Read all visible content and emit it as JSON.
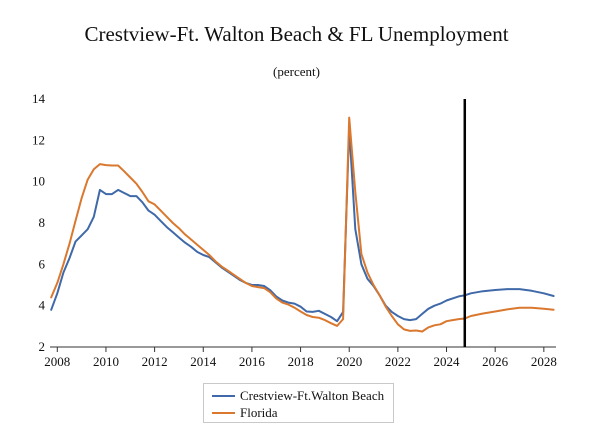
{
  "chart_data": {
    "type": "line",
    "title": "Crestview-Ft. Walton Beach & FL Unemployment",
    "subtitle": "(percent)",
    "xlabel": "",
    "ylabel": "",
    "xlim": [
      2007.7,
      2028.5
    ],
    "ylim": [
      2,
      14
    ],
    "x_ticks": [
      2008,
      2010,
      2012,
      2014,
      2016,
      2018,
      2020,
      2022,
      2024,
      2026,
      2028
    ],
    "x_tick_labels": [
      "2008",
      "2010",
      "2012",
      "2014",
      "2016",
      "2018",
      "2020",
      "2022",
      "2024",
      "2026",
      "2028"
    ],
    "y_ticks": [
      2,
      4,
      6,
      8,
      10,
      12,
      14
    ],
    "y_tick_labels": [
      "2",
      "4",
      "6",
      "8",
      "10",
      "12",
      "14"
    ],
    "grid": false,
    "legend_position": "bottom-center",
    "annotations": [
      {
        "type": "vertical-line",
        "x": 2024.75,
        "color": "#000000",
        "meaning": "forecast start"
      }
    ],
    "series": [
      {
        "name": "Crestview-Ft.Walton Beach",
        "color": "#3f69a8",
        "points": [
          [
            2007.75,
            3.8
          ],
          [
            2008.0,
            4.6
          ],
          [
            2008.25,
            5.6
          ],
          [
            2008.5,
            6.3
          ],
          [
            2008.75,
            7.1
          ],
          [
            2009.0,
            7.4
          ],
          [
            2009.25,
            7.7
          ],
          [
            2009.5,
            8.3
          ],
          [
            2009.75,
            9.6
          ],
          [
            2010.0,
            9.4
          ],
          [
            2010.25,
            9.4
          ],
          [
            2010.5,
            9.6
          ],
          [
            2010.75,
            9.45
          ],
          [
            2011.0,
            9.3
          ],
          [
            2011.25,
            9.3
          ],
          [
            2011.5,
            9.0
          ],
          [
            2011.75,
            8.6
          ],
          [
            2012.0,
            8.4
          ],
          [
            2012.25,
            8.1
          ],
          [
            2012.5,
            7.8
          ],
          [
            2012.75,
            7.55
          ],
          [
            2013.0,
            7.3
          ],
          [
            2013.25,
            7.05
          ],
          [
            2013.5,
            6.85
          ],
          [
            2013.75,
            6.6
          ],
          [
            2014.0,
            6.45
          ],
          [
            2014.25,
            6.35
          ],
          [
            2014.5,
            6.1
          ],
          [
            2014.75,
            5.85
          ],
          [
            2015.0,
            5.65
          ],
          [
            2015.25,
            5.45
          ],
          [
            2015.5,
            5.25
          ],
          [
            2015.75,
            5.1
          ],
          [
            2016.0,
            5.0
          ],
          [
            2016.25,
            5.0
          ],
          [
            2016.5,
            4.95
          ],
          [
            2016.75,
            4.75
          ],
          [
            2017.0,
            4.45
          ],
          [
            2017.25,
            4.25
          ],
          [
            2017.5,
            4.15
          ],
          [
            2017.75,
            4.1
          ],
          [
            2018.0,
            3.95
          ],
          [
            2018.25,
            3.72
          ],
          [
            2018.5,
            3.7
          ],
          [
            2018.75,
            3.75
          ],
          [
            2019.0,
            3.6
          ],
          [
            2019.25,
            3.45
          ],
          [
            2019.5,
            3.25
          ],
          [
            2019.75,
            3.7
          ],
          [
            2020.0,
            12.6
          ],
          [
            2020.25,
            7.7
          ],
          [
            2020.5,
            6.0
          ],
          [
            2020.75,
            5.3
          ],
          [
            2021.0,
            4.95
          ],
          [
            2021.25,
            4.5
          ],
          [
            2021.5,
            4.0
          ],
          [
            2021.75,
            3.7
          ],
          [
            2022.0,
            3.5
          ],
          [
            2022.25,
            3.35
          ],
          [
            2022.5,
            3.3
          ],
          [
            2022.75,
            3.35
          ],
          [
            2023.0,
            3.6
          ],
          [
            2023.25,
            3.85
          ],
          [
            2023.5,
            4.0
          ],
          [
            2023.75,
            4.1
          ],
          [
            2024.0,
            4.25
          ],
          [
            2024.25,
            4.35
          ],
          [
            2024.5,
            4.45
          ],
          [
            2024.75,
            4.5
          ],
          [
            2025.0,
            4.6
          ],
          [
            2025.5,
            4.7
          ],
          [
            2026.0,
            4.76
          ],
          [
            2026.5,
            4.8
          ],
          [
            2027.0,
            4.8
          ],
          [
            2027.5,
            4.72
          ],
          [
            2028.0,
            4.6
          ],
          [
            2028.4,
            4.47
          ]
        ]
      },
      {
        "name": "Florida",
        "color": "#d9782e",
        "points": [
          [
            2007.75,
            4.4
          ],
          [
            2008.0,
            5.1
          ],
          [
            2008.25,
            6.0
          ],
          [
            2008.5,
            7.0
          ],
          [
            2008.75,
            8.1
          ],
          [
            2009.0,
            9.2
          ],
          [
            2009.25,
            10.1
          ],
          [
            2009.5,
            10.6
          ],
          [
            2009.75,
            10.85
          ],
          [
            2010.0,
            10.8
          ],
          [
            2010.25,
            10.78
          ],
          [
            2010.5,
            10.78
          ],
          [
            2010.75,
            10.5
          ],
          [
            2011.0,
            10.2
          ],
          [
            2011.25,
            9.9
          ],
          [
            2011.5,
            9.5
          ],
          [
            2011.75,
            9.05
          ],
          [
            2012.0,
            8.9
          ],
          [
            2012.25,
            8.6
          ],
          [
            2012.5,
            8.3
          ],
          [
            2012.75,
            8.0
          ],
          [
            2013.0,
            7.75
          ],
          [
            2013.25,
            7.45
          ],
          [
            2013.5,
            7.2
          ],
          [
            2013.75,
            6.95
          ],
          [
            2014.0,
            6.7
          ],
          [
            2014.25,
            6.45
          ],
          [
            2014.5,
            6.15
          ],
          [
            2014.75,
            5.9
          ],
          [
            2015.0,
            5.7
          ],
          [
            2015.25,
            5.5
          ],
          [
            2015.5,
            5.3
          ],
          [
            2015.75,
            5.1
          ],
          [
            2016.0,
            4.95
          ],
          [
            2016.25,
            4.9
          ],
          [
            2016.5,
            4.85
          ],
          [
            2016.75,
            4.65
          ],
          [
            2017.0,
            4.35
          ],
          [
            2017.25,
            4.15
          ],
          [
            2017.5,
            4.05
          ],
          [
            2017.75,
            3.9
          ],
          [
            2018.0,
            3.72
          ],
          [
            2018.25,
            3.55
          ],
          [
            2018.5,
            3.45
          ],
          [
            2018.75,
            3.42
          ],
          [
            2019.0,
            3.3
          ],
          [
            2019.25,
            3.15
          ],
          [
            2019.5,
            3.02
          ],
          [
            2019.75,
            3.35
          ],
          [
            2020.0,
            13.1
          ],
          [
            2020.25,
            9.5
          ],
          [
            2020.5,
            6.5
          ],
          [
            2020.75,
            5.6
          ],
          [
            2021.0,
            5.0
          ],
          [
            2021.25,
            4.5
          ],
          [
            2021.5,
            3.95
          ],
          [
            2021.75,
            3.5
          ],
          [
            2022.0,
            3.1
          ],
          [
            2022.25,
            2.85
          ],
          [
            2022.5,
            2.78
          ],
          [
            2022.75,
            2.8
          ],
          [
            2023.0,
            2.75
          ],
          [
            2023.25,
            2.95
          ],
          [
            2023.5,
            3.05
          ],
          [
            2023.75,
            3.1
          ],
          [
            2024.0,
            3.25
          ],
          [
            2024.25,
            3.3
          ],
          [
            2024.5,
            3.35
          ],
          [
            2024.75,
            3.38
          ],
          [
            2025.0,
            3.5
          ],
          [
            2025.5,
            3.62
          ],
          [
            2026.0,
            3.72
          ],
          [
            2026.5,
            3.82
          ],
          [
            2027.0,
            3.9
          ],
          [
            2027.5,
            3.9
          ],
          [
            2028.0,
            3.85
          ],
          [
            2028.4,
            3.8
          ]
        ]
      }
    ]
  }
}
